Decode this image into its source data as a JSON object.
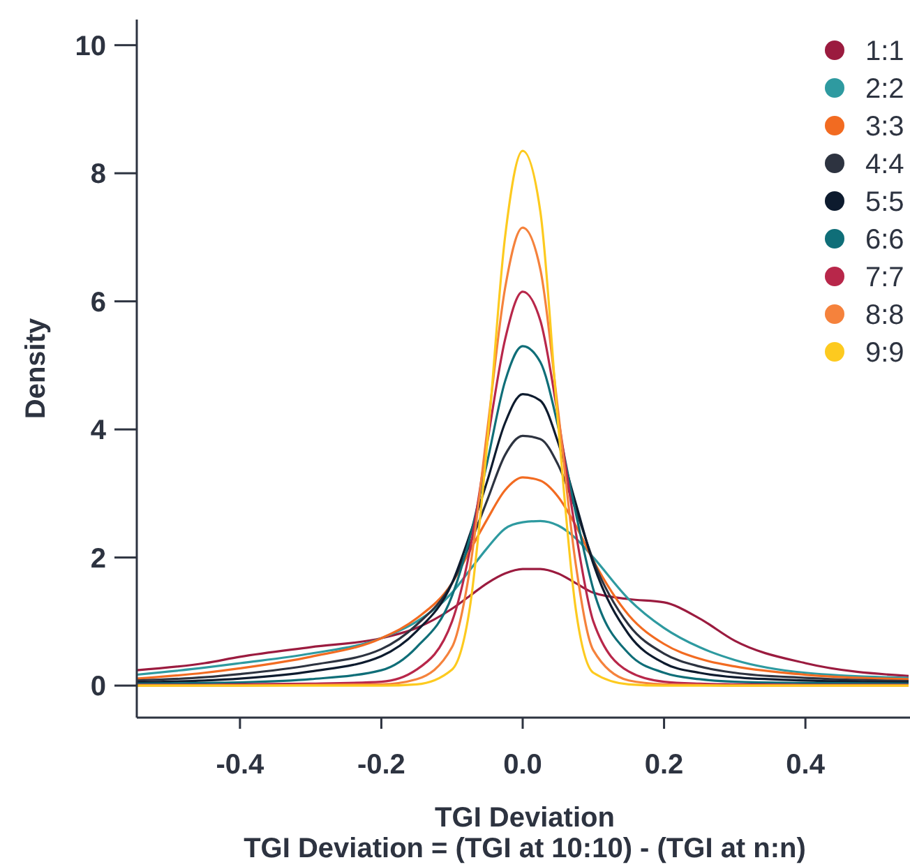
{
  "chart_data": {
    "type": "line",
    "xlabel": "TGI Deviation",
    "ylabel": "Density",
    "annotations": [
      "TGI Deviation = (TGI at 10:10) - (TGI at n:n)"
    ],
    "x": [
      -0.546,
      -0.45,
      -0.4,
      -0.3,
      -0.2,
      -0.15,
      -0.1,
      -0.075,
      -0.05,
      -0.025,
      0,
      0.025,
      0.05,
      0.075,
      0.1,
      0.15,
      0.2,
      0.25,
      0.3,
      0.4,
      0.546
    ],
    "xlim": [
      -0.546,
      0.546
    ],
    "xticks": [
      -0.4,
      -0.2,
      {
        "value": 0,
        "label": "0.0"
      },
      0.2,
      0.4
    ],
    "ylim": [
      -0.5,
      10.4
    ],
    "yticks": [
      0,
      2,
      4,
      6,
      8,
      10
    ],
    "grid": false,
    "legend": "top right",
    "marker": "none",
    "line_style": "solid",
    "series": [
      {
        "name": "1:1",
        "color": "#9b1b3f",
        "values": [
          0.24,
          0.35,
          0.45,
          0.6,
          0.74,
          0.9,
          1.2,
          1.4,
          1.6,
          1.75,
          1.82,
          1.82,
          1.75,
          1.6,
          1.45,
          1.35,
          1.3,
          1.05,
          0.7,
          0.35,
          0.15
        ]
      },
      {
        "name": "2:2",
        "color": "#2e9aa0",
        "values": [
          0.17,
          0.28,
          0.35,
          0.5,
          0.74,
          1.0,
          1.45,
          1.8,
          2.15,
          2.45,
          2.55,
          2.57,
          2.5,
          2.3,
          2.0,
          1.35,
          0.9,
          0.6,
          0.4,
          0.2,
          0.12
        ]
      },
      {
        "name": "3:3",
        "color": "#f26b21",
        "values": [
          0.11,
          0.2,
          0.27,
          0.45,
          0.74,
          1.05,
          1.6,
          2.1,
          2.6,
          3.05,
          3.25,
          3.2,
          2.95,
          2.5,
          1.95,
          1.1,
          0.65,
          0.42,
          0.3,
          0.17,
          0.1
        ]
      },
      {
        "name": "4:4",
        "color": "#2d3340",
        "values": [
          0.08,
          0.13,
          0.18,
          0.32,
          0.57,
          0.95,
          1.6,
          2.2,
          2.9,
          3.6,
          3.9,
          3.85,
          3.45,
          2.75,
          1.95,
          0.95,
          0.5,
          0.3,
          0.2,
          0.12,
          0.07
        ]
      },
      {
        "name": "5:5",
        "color": "#0d1b2e",
        "values": [
          0.05,
          0.08,
          0.11,
          0.22,
          0.46,
          0.85,
          1.6,
          2.35,
          3.2,
          4.1,
          4.55,
          4.45,
          3.8,
          2.85,
          1.9,
          0.8,
          0.35,
          0.2,
          0.13,
          0.08,
          0.05
        ]
      },
      {
        "name": "6:6",
        "color": "#0f6e78",
        "values": [
          0.03,
          0.04,
          0.05,
          0.1,
          0.24,
          0.6,
          1.4,
          2.3,
          3.5,
          4.75,
          5.3,
          5.05,
          4.05,
          2.7,
          1.5,
          0.5,
          0.2,
          0.1,
          0.06,
          0.04,
          0.03
        ]
      },
      {
        "name": "7:7",
        "color": "#b8274a",
        "values": [
          0.01,
          0.01,
          0.02,
          0.03,
          0.06,
          0.25,
          1.0,
          2.1,
          3.8,
          5.4,
          6.15,
          5.7,
          4.2,
          2.4,
          1.0,
          0.22,
          0.06,
          0.03,
          0.02,
          0.01,
          0.01
        ]
      },
      {
        "name": "8:8",
        "color": "#f5823c",
        "values": [
          0,
          0,
          0,
          0.01,
          0.02,
          0.1,
          0.6,
          1.8,
          4.0,
          6.2,
          7.15,
          6.5,
          4.3,
          1.9,
          0.55,
          0.08,
          0.02,
          0.01,
          0,
          0,
          0
        ]
      },
      {
        "name": "9:9",
        "color": "#fdca1f",
        "values": [
          0,
          0,
          0,
          0,
          0,
          0.02,
          0.25,
          1.2,
          3.8,
          7.0,
          8.35,
          7.4,
          4.1,
          1.2,
          0.2,
          0.02,
          0,
          0,
          0,
          0,
          0
        ]
      }
    ]
  }
}
